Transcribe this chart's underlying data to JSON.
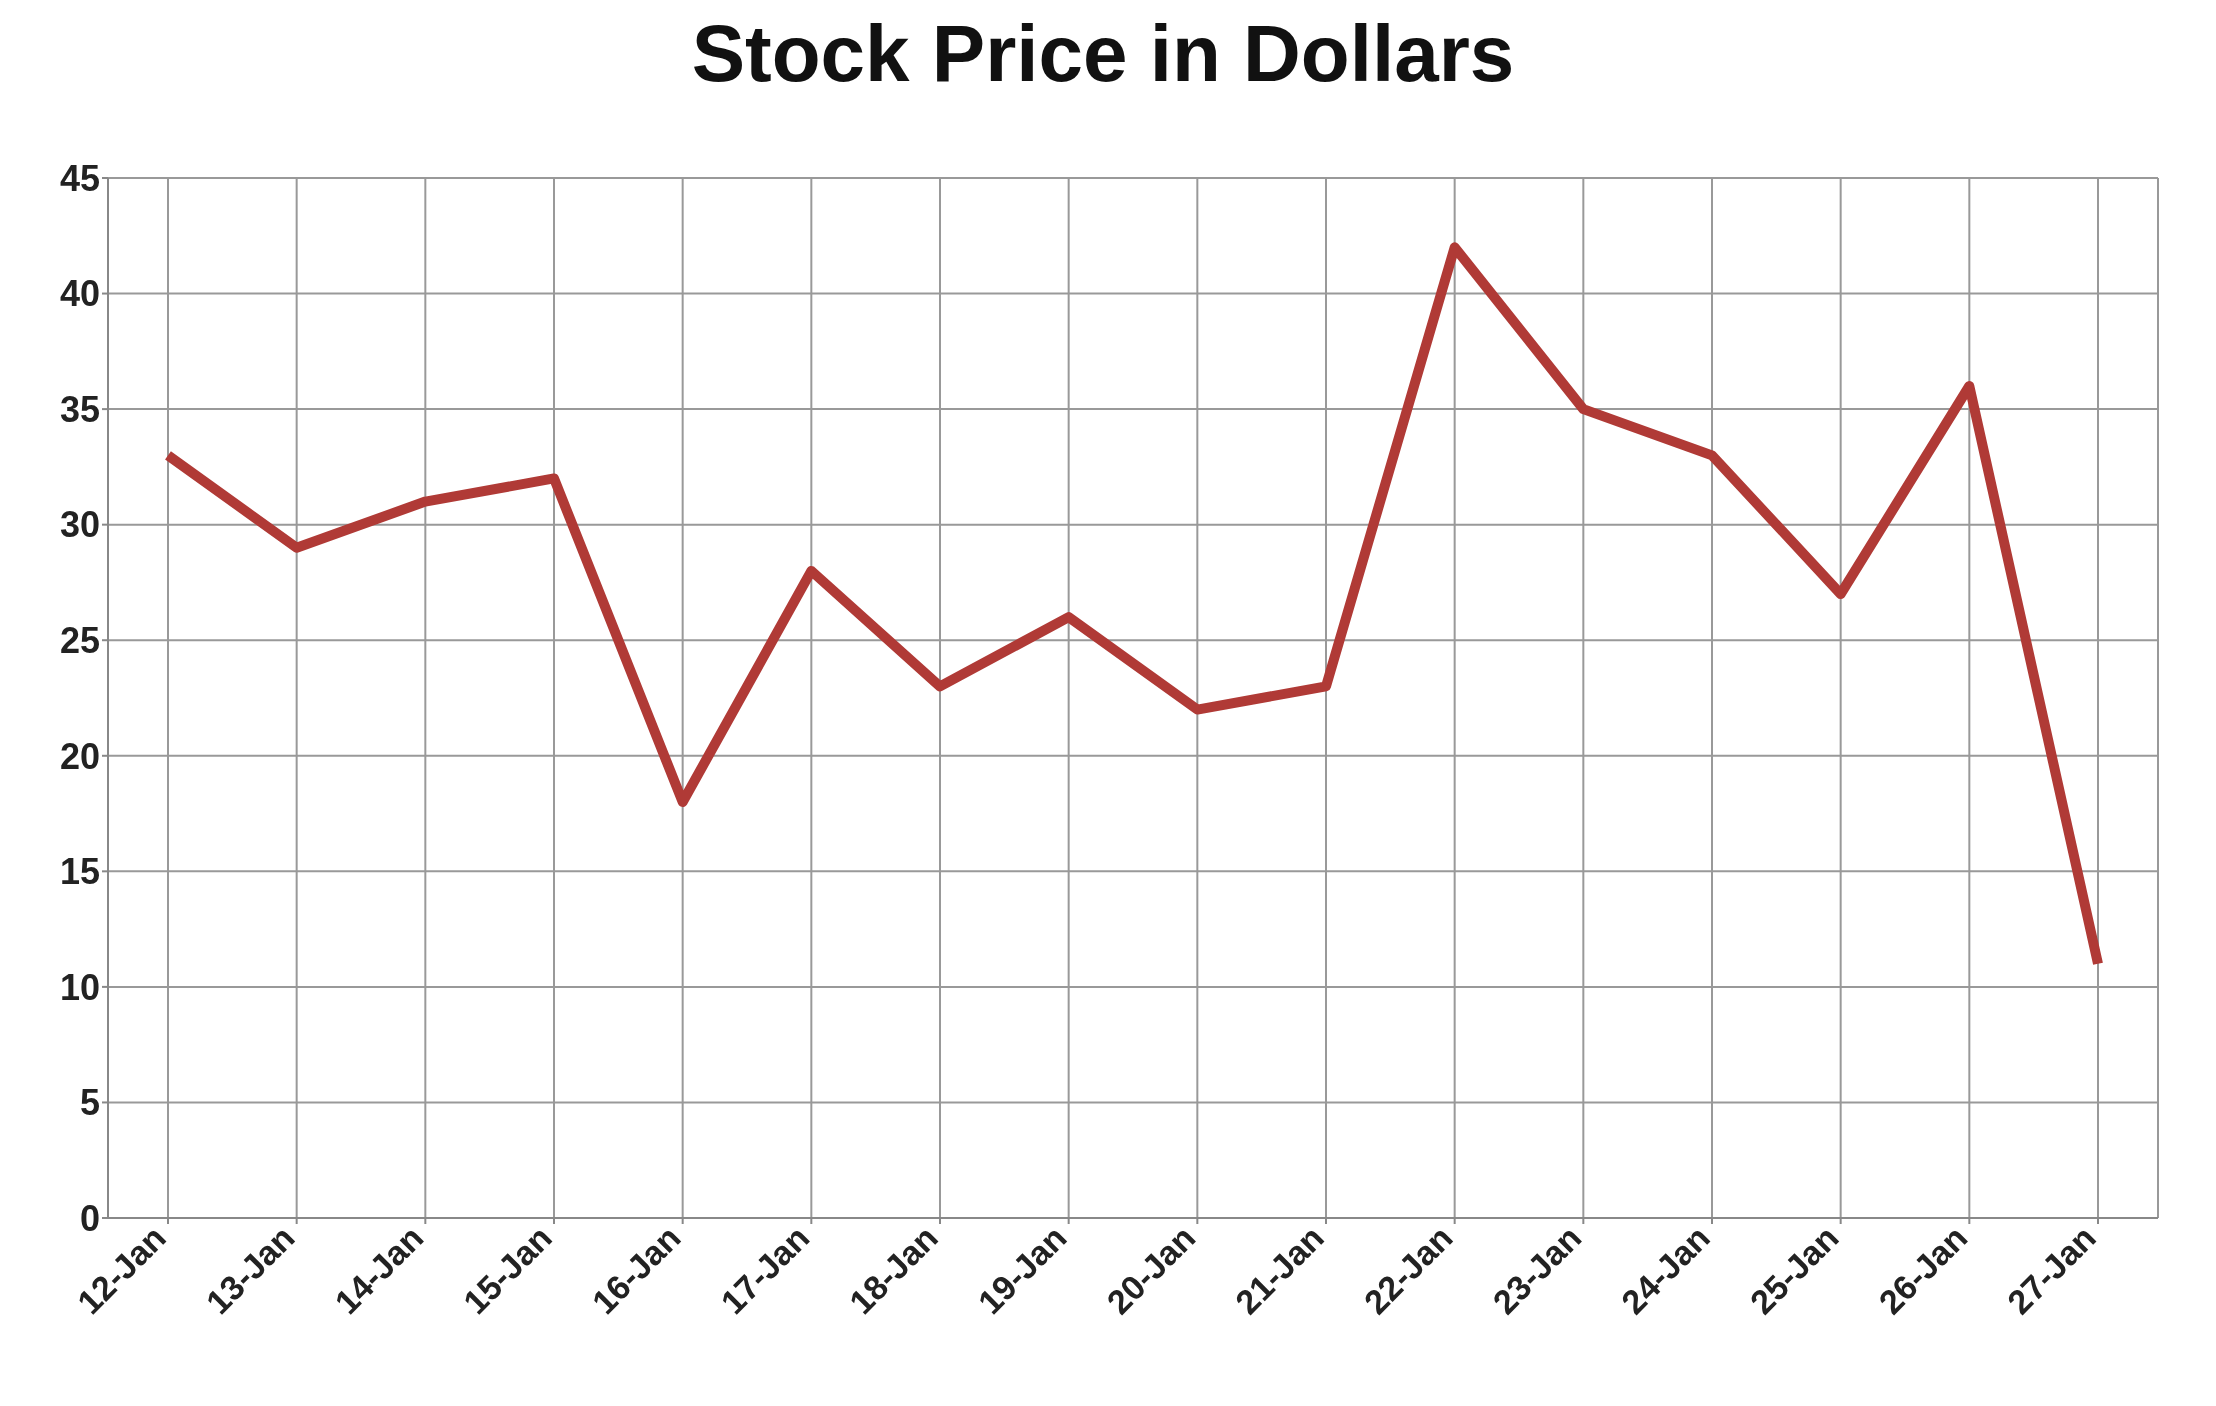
{
  "chart_data": {
    "type": "line",
    "title": "Stock Price in Dollars",
    "categories": [
      "12-Jan",
      "13-Jan",
      "14-Jan",
      "15-Jan",
      "16-Jan",
      "17-Jan",
      "18-Jan",
      "19-Jan",
      "20-Jan",
      "21-Jan",
      "22-Jan",
      "23-Jan",
      "24-Jan",
      "25-Jan",
      "26-Jan",
      "27-Jan"
    ],
    "values": [
      33,
      29,
      31,
      32,
      18,
      28,
      23,
      26,
      22,
      23,
      42,
      35,
      33,
      27,
      36,
      11
    ],
    "color": "#b03a36",
    "ylim": [
      0,
      45
    ],
    "yticks": [
      0,
      5,
      10,
      15,
      20,
      25,
      30,
      35,
      40,
      45
    ],
    "grid": true,
    "marker": "none",
    "line_style": "solid"
  }
}
